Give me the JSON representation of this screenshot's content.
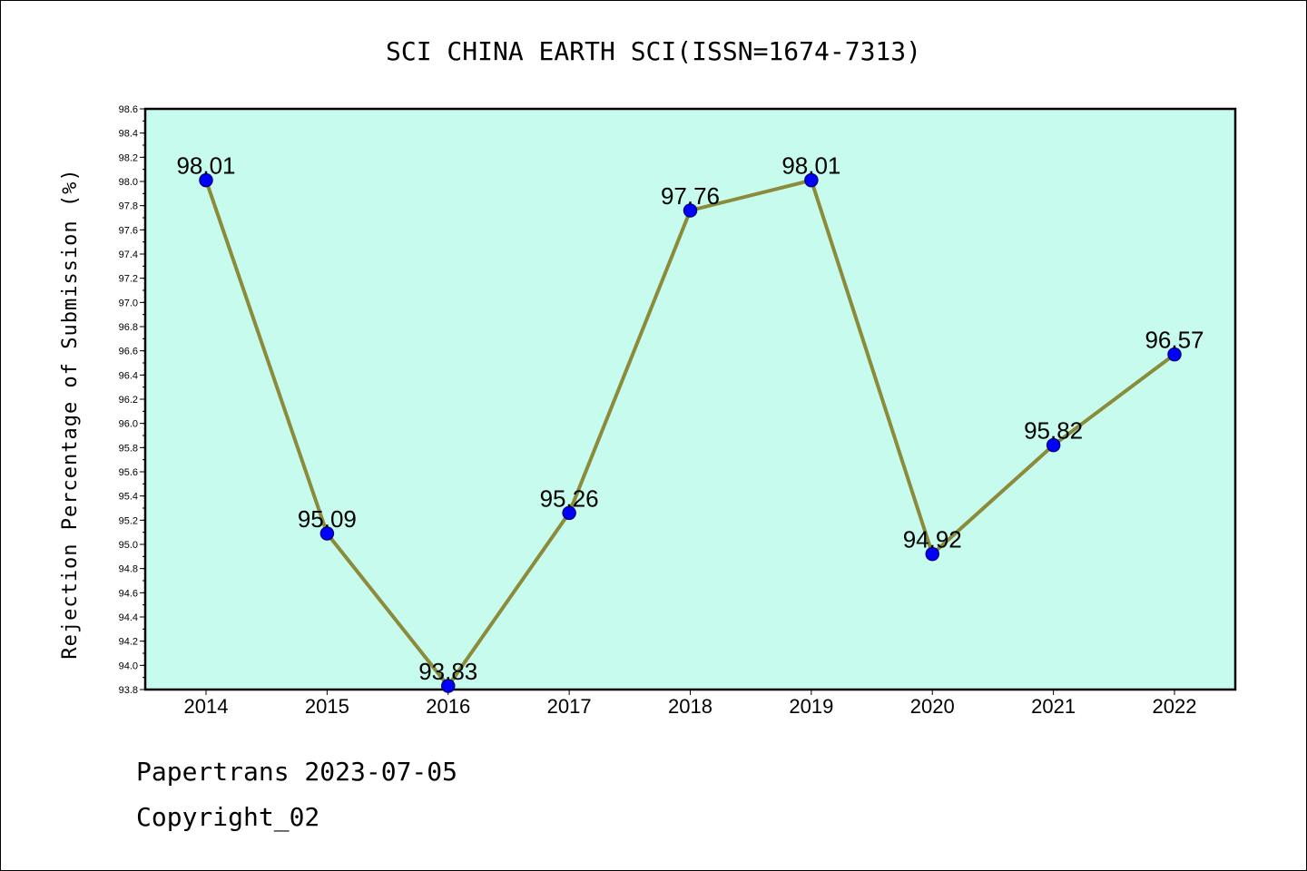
{
  "chart_data": {
    "type": "line",
    "title": "SCI CHINA EARTH SCI(ISSN=1674-7313)",
    "xlabel": "",
    "ylabel": "Rejection Percentage of Submission (%)",
    "categories": [
      "2014",
      "2015",
      "2016",
      "2017",
      "2018",
      "2019",
      "2020",
      "2021",
      "2022"
    ],
    "series": [
      {
        "values": [
          98.01,
          95.09,
          93.83,
          95.26,
          97.76,
          98.01,
          94.92,
          95.82,
          96.57
        ],
        "data_labels": [
          "98.01",
          "95.09",
          "93.83",
          "95.26",
          "97.76",
          "98.01",
          "94.92",
          "95.82",
          "96.57"
        ]
      }
    ],
    "ylim": [
      93.8,
      98.6
    ],
    "yticks": [
      "93.8",
      "94.0",
      "94.2",
      "94.4",
      "94.6",
      "94.8",
      "95.0",
      "95.2",
      "95.4",
      "95.6",
      "95.8",
      "96.0",
      "96.2",
      "96.4",
      "96.6",
      "96.8",
      "97.0",
      "97.2",
      "97.4",
      "97.6",
      "97.8",
      "98.0",
      "98.2",
      "98.4",
      "98.6"
    ],
    "grid": false,
    "colors": {
      "plot_background": "#c6fbee",
      "line": "#8b8b3a",
      "marker_fill": "#0000ff",
      "marker_edge": "#00008b"
    }
  },
  "footer": {
    "line1": "Papertrans 2023-07-05",
    "line2": "Copyright_02"
  }
}
